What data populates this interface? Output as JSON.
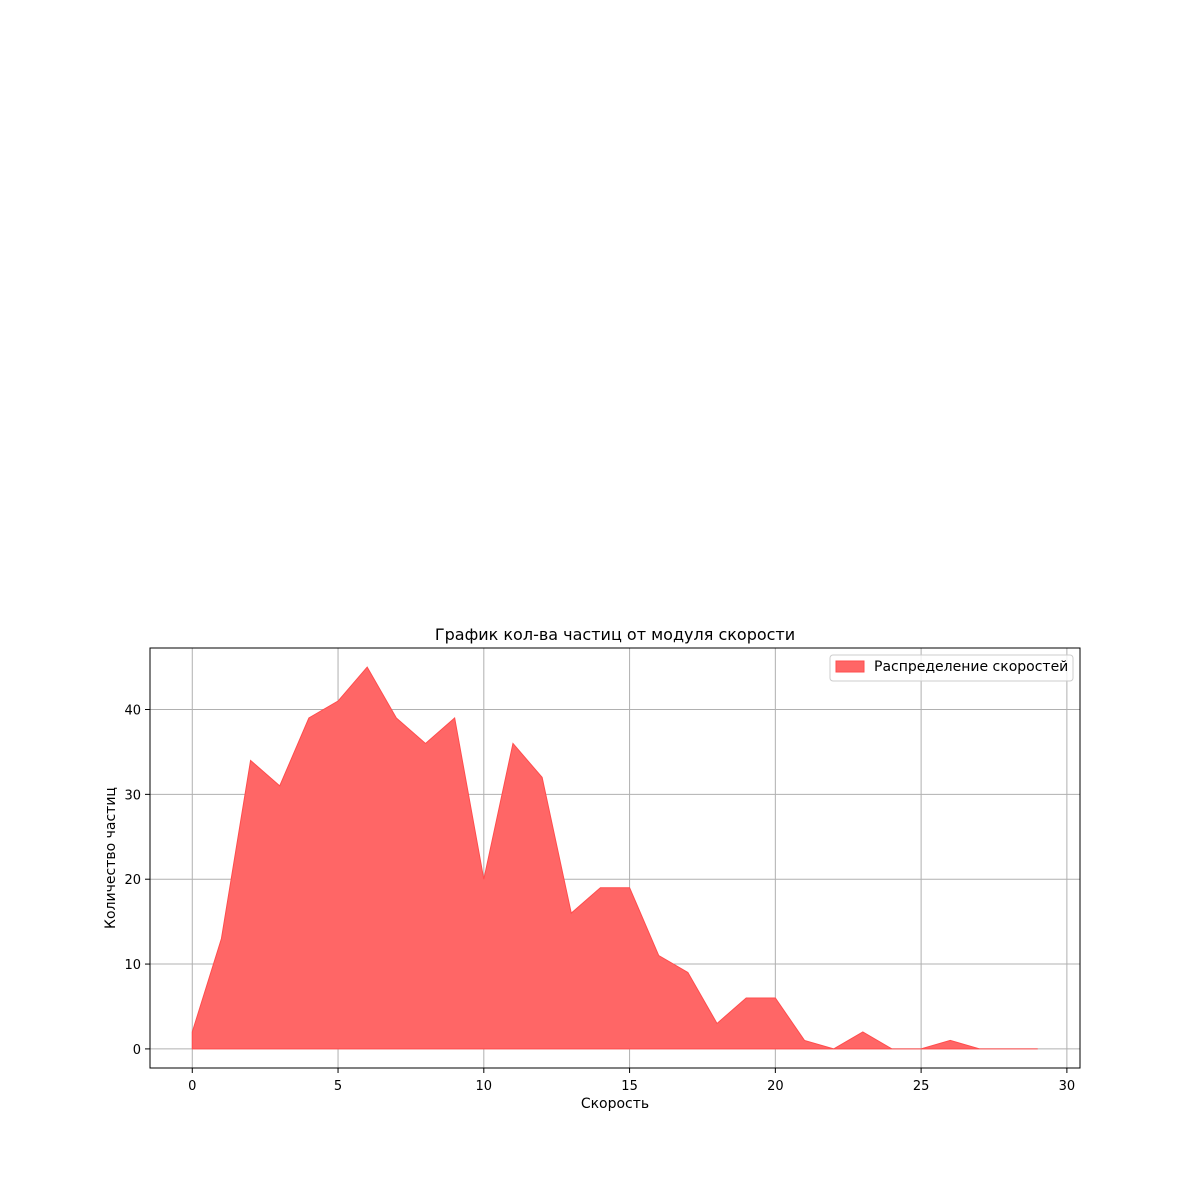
{
  "chart_data": {
    "type": "area",
    "title": "График кол-ва частиц от модуля скорости",
    "xlabel": "Скорость",
    "ylabel": "Количество частиц",
    "xlim": [
      -1.45,
      30.45
    ],
    "ylim": [
      -2.25,
      47.25
    ],
    "xticks": [
      0,
      5,
      10,
      15,
      20,
      25,
      30
    ],
    "yticks": [
      0,
      10,
      20,
      30,
      40
    ],
    "grid": true,
    "legend_position": "top-right",
    "series": [
      {
        "name": "Распределение скоростей",
        "color": "#ff6666",
        "edge_color": "#ff4d4d",
        "x": [
          0,
          1,
          2,
          3,
          4,
          5,
          6,
          7,
          8,
          9,
          10,
          11,
          12,
          13,
          14,
          15,
          16,
          17,
          18,
          19,
          20,
          21,
          22,
          23,
          24,
          25,
          26,
          27,
          28,
          29
        ],
        "values": [
          2,
          13,
          34,
          31,
          39,
          41,
          45,
          39,
          36,
          39,
          20,
          36,
          32,
          16,
          19,
          19,
          11,
          9,
          3,
          6,
          6,
          1,
          0,
          2,
          0,
          0,
          1,
          0,
          0,
          0
        ]
      }
    ]
  }
}
